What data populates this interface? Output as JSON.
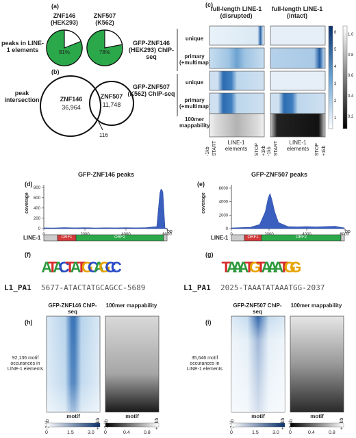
{
  "panels": {
    "a": {
      "label": "(a)",
      "row_label": "peaks in LINE-1 elements",
      "pies": [
        {
          "title": "ZNF146",
          "subtitle": "(HEK293)",
          "percent_text": "81%",
          "fraction": 0.81
        },
        {
          "title": "ZNF507",
          "subtitle": "(K562)",
          "percent_text": "78%",
          "fraction": 0.78
        }
      ],
      "color": "#2ba84a"
    },
    "b": {
      "label": "(b)",
      "row_label": "peak intersection",
      "left_name": "ZNF146",
      "left_count": "36,964",
      "right_name": "ZNF507",
      "right_count": "11,748",
      "overlap": "116"
    },
    "c": {
      "label": "(c)",
      "col1": "full-length LINE-1 (disrupted)",
      "col2": "full-length LINE-1 (intact)",
      "group1": "GFP-ZNF146 (HEK293) ChIP-seq",
      "group2": "GFP-ZNF507 (K562) ChIP-seq",
      "row_unique": "unique",
      "row_primary": "primary (+multimap)",
      "mappability": "100mer mappability",
      "x_ticks": [
        "-1kb",
        "START",
        "LINE-1 elements",
        "STOP",
        "+1kb"
      ],
      "blue_scale": [
        "6",
        "5",
        "4",
        "3",
        "2",
        "1",
        "0"
      ],
      "gray_scale": [
        "1.0",
        "0.8",
        "0.6",
        "0.4",
        "0.2",
        "0.0"
      ]
    },
    "d": {
      "label": "(d)",
      "title": "GFP-ZNF146 peaks",
      "ylabel": "coverage",
      "bp": "bp"
    },
    "e": {
      "label": "(e)",
      "title": "GFP-ZNF507 peaks",
      "ylabel": "coverage",
      "bp": "bp"
    },
    "gene_map": {
      "name": "LINE-1",
      "orf1": "ORF1",
      "orf2": "ORF2"
    },
    "f": {
      "label": "(f)",
      "motif": "ATACTATGCAGCC",
      "seq_name": "L1_PA1",
      "seq": "5677-ATACTATGCAGCC-5689"
    },
    "g": {
      "label": "(g)",
      "motif": "TAAATGTAAATGG",
      "seq_name": "L1_PA1",
      "seq": "2025-TAAATATAAATGG-2037"
    },
    "h": {
      "label": "(h)",
      "chip_title": "GFP-ZNF146 ChIP-seq",
      "map_title": "100mer mappability",
      "side_note": "92,136 motif occurances in LINE-1 elements",
      "x_left": "-1 kb",
      "x_mid": "motif",
      "x_right": "+1 kb",
      "blue_ticks": [
        "0",
        "1.5",
        "3.0"
      ],
      "gray_ticks": [
        "0",
        "0.4",
        "0.8"
      ]
    },
    "i": {
      "label": "(i)",
      "chip_title": "GFP-ZNF507 ChIP-seq",
      "map_title": "100mer mappability",
      "side_note": "35,646 motif occurances in LINE-1 elements",
      "x_left": "-1 kb",
      "x_mid": "motif",
      "x_right": "+1 kb",
      "blue_ticks": [
        "0",
        "1.5",
        "3.0"
      ],
      "gray_ticks": [
        "0",
        "0.4",
        "0.8"
      ]
    }
  },
  "chart_data": [
    {
      "type": "area",
      "title": "GFP-ZNF146 peaks",
      "ylabel": "coverage",
      "xlabel": "bp",
      "x_ticks": [
        0,
        2000,
        4000,
        6000
      ],
      "y_ticks": [
        0,
        200,
        400,
        600,
        800
      ],
      "ylim": [
        0,
        850
      ],
      "x": [
        0,
        500,
        1000,
        1500,
        2000,
        2500,
        3000,
        3500,
        4000,
        4500,
        5000,
        5500,
        5650,
        5700,
        5750,
        5800,
        5900,
        6000
      ],
      "y": [
        15,
        12,
        20,
        14,
        18,
        12,
        16,
        14,
        18,
        15,
        20,
        40,
        690,
        760,
        760,
        700,
        10,
        5
      ]
    },
    {
      "type": "area",
      "title": "GFP-ZNF507 peaks",
      "ylabel": "coverage",
      "xlabel": "bp",
      "x_ticks": [
        0,
        2000,
        4000,
        6000
      ],
      "y_ticks": [
        0,
        2000,
        4000,
        6000
      ],
      "ylim": [
        0,
        6500
      ],
      "x": [
        0,
        500,
        1000,
        1500,
        1800,
        1950,
        2050,
        2150,
        2300,
        2500,
        3000,
        3500,
        4000,
        4500,
        5000,
        5500,
        6000
      ],
      "y": [
        100,
        150,
        200,
        600,
        2500,
        4500,
        5200,
        4300,
        2500,
        900,
        300,
        250,
        300,
        250,
        300,
        350,
        100
      ]
    }
  ]
}
